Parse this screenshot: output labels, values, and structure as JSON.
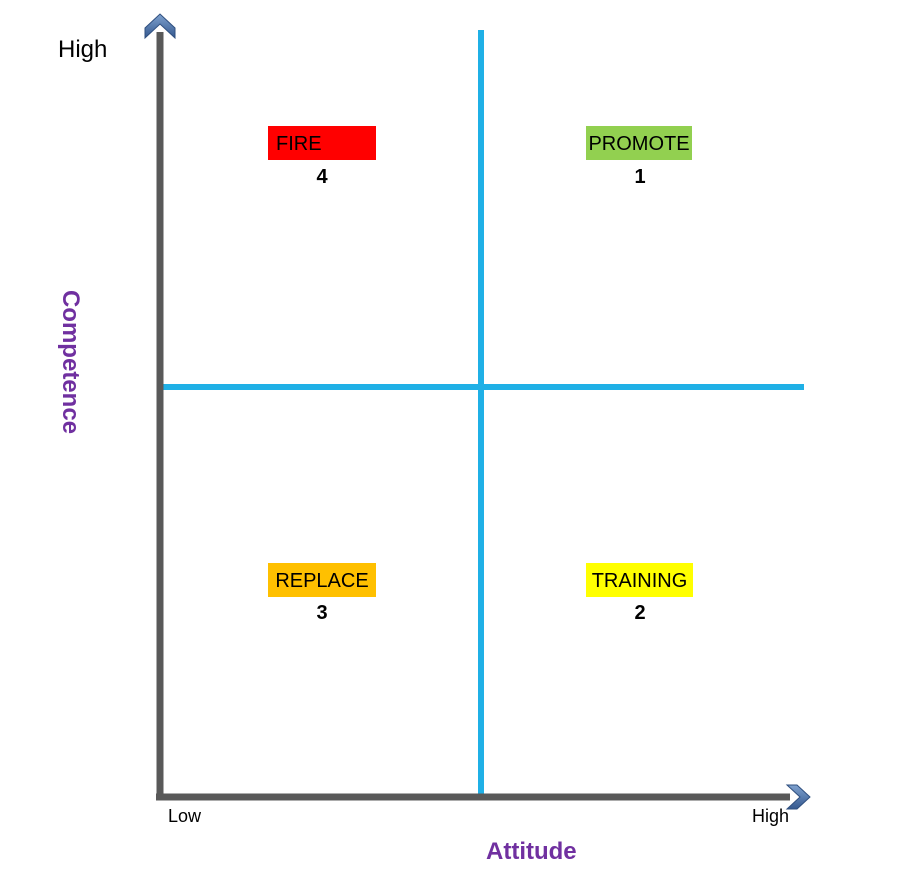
{
  "axes": {
    "y_top_label": "High",
    "y_title": "Competence",
    "x_left_label": "Low",
    "x_right_label": "High",
    "x_title": "Attitude"
  },
  "quadrants": {
    "fire": {
      "label": "FIRE",
      "rank": "4",
      "color": "#ff0000"
    },
    "promote": {
      "label": "PROMOTE",
      "rank": "1",
      "color": "#92d050"
    },
    "replace": {
      "label": "REPLACE",
      "rank": "3",
      "color": "#ffc000"
    },
    "training": {
      "label": "TRAINING",
      "rank": "2",
      "color": "#ffff00"
    }
  },
  "colors": {
    "axis": "#595959",
    "divider": "#1fb0e6",
    "title": "#7030a0",
    "arrowhead": "#4a6fa5"
  }
}
